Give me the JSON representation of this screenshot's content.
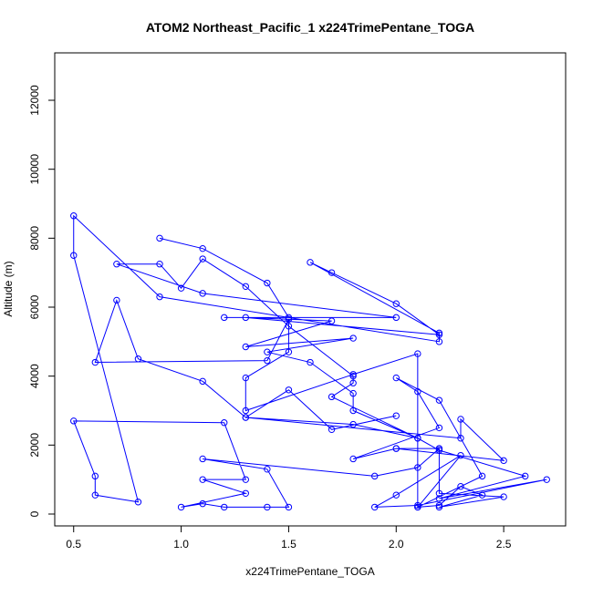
{
  "chart_data": {
    "type": "line",
    "title": "ATOM2 Northeast_Pacific_1 x224TrimePentane_TOGA",
    "xlabel": "x224TrimePentane_TOGA",
    "ylabel": "Altitude (m)",
    "color": "#0000ff",
    "xlim": [
      0.412,
      2.788
    ],
    "ylim": [
      -344,
      13375
    ],
    "xticks": [
      0.5,
      {
        "value": 1,
        "label": "1.0"
      },
      1.5,
      {
        "value": 2,
        "label": "2.0"
      },
      2.5
    ],
    "yticks": [
      0,
      2000,
      4000,
      6000,
      8000,
      10000,
      12000
    ],
    "x": [
      0.9,
      1.1,
      1.4,
      1.5,
      1.2,
      2.0,
      1.1,
      0.7,
      0.9,
      1.0,
      1.1,
      1.3,
      1.5,
      1.8,
      1.8,
      1.7,
      2.1,
      1.8,
      1.3,
      2.3,
      2.3,
      2.5,
      2.0,
      2.2,
      2.1,
      1.9,
      1.1,
      1.4,
      1.5,
      1.4,
      1.2,
      1.1,
      1.0,
      1.3,
      1.1,
      1.3,
      1.2,
      0.5,
      0.6,
      0.6,
      0.8,
      0.5,
      0.5,
      0.9,
      2.2,
      2.2,
      1.6,
      1.7,
      2.0,
      2.2,
      1.3,
      1.7,
      1.3,
      1.8,
      1.4,
      1.6,
      1.8,
      1.8,
      2.1,
      2.2,
      2.6,
      2.2,
      2.7,
      2.1,
      1.9,
      2.0,
      2.3,
      2.1,
      2.2,
      2.3,
      2.4,
      2.2,
      2.5,
      2.2,
      2.2,
      2.0,
      1.8,
      2.2,
      2.1,
      2.0,
      2.2,
      2.4,
      2.1,
      2.1,
      1.8,
      1.3,
      1.3,
      1.5,
      1.5,
      1.4,
      0.6,
      0.7,
      0.8,
      1.1,
      1.3,
      1.5,
      1.7,
      2.0
    ],
    "values": [
      8000,
      7700,
      6700,
      5700,
      5700,
      5700,
      6400,
      7250,
      7250,
      6550,
      7400,
      6600,
      5450,
      4000,
      3800,
      3400,
      2200,
      2600,
      2800,
      2200,
      2750,
      1550,
      1900,
      1900,
      1350,
      1100,
      1600,
      1300,
      200,
      200,
      200,
      300,
      200,
      600,
      1000,
      1000,
      2650,
      2700,
      1100,
      550,
      350,
      7500,
      8650,
      6300,
      5000,
      5250,
      7300,
      7000,
      6100,
      5200,
      5700,
      5600,
      4850,
      5100,
      4700,
      4400,
      3500,
      3000,
      2200,
      1850,
      1100,
      450,
      1000,
      250,
      200,
      550,
      1700,
      200,
      250,
      800,
      550,
      200,
      500,
      600,
      1900,
      1900,
      1600,
      2500,
      3550,
      3950,
      3300,
      1100,
      200,
      4650,
      4050,
      3000,
      3950,
      4700,
      5650,
      4450,
      4400,
      6200,
      4500,
      3850,
      2800,
      3600,
      2450,
      2850
    ]
  }
}
